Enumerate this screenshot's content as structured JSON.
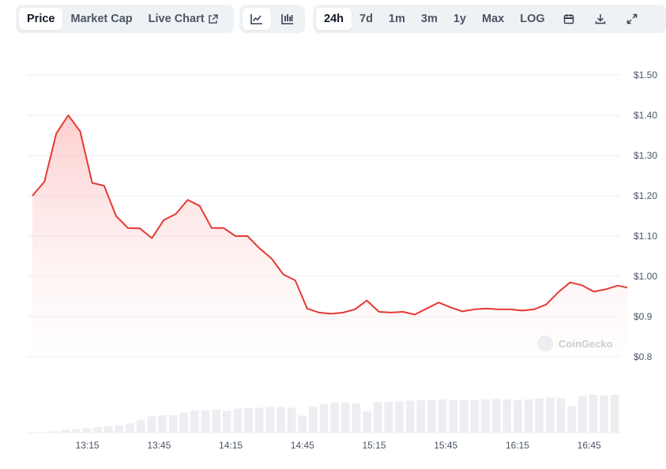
{
  "tabs": {
    "price": "Price",
    "market_cap": "Market Cap",
    "live_chart": "Live Chart"
  },
  "chart_types": [
    "line-chart-icon",
    "candlestick-chart-icon"
  ],
  "ranges": [
    "24h",
    "7d",
    "1m",
    "3m",
    "1y",
    "Max",
    "LOG"
  ],
  "active_range": "24h",
  "actions": [
    "calendar-icon",
    "download-icon",
    "expand-icon"
  ],
  "watermark": "CoinGecko",
  "colors": {
    "line": "#e53935",
    "fill": "#fdd9d7",
    "volume": "#edeef1",
    "grid": "#eceef1"
  },
  "chart_data": {
    "type": "area",
    "xlabel": "",
    "ylabel": "",
    "yticks": [
      "$1.50",
      "$1.40",
      "$1.30",
      "$1.20",
      "$1.10",
      "$1.00",
      "$0.9",
      "$0.8"
    ],
    "ytick_values": [
      1.5,
      1.4,
      1.3,
      1.2,
      1.1,
      1.0,
      0.9,
      0.8
    ],
    "ylim": [
      0.8,
      1.5
    ],
    "xticks": [
      "13:15",
      "13:45",
      "14:15",
      "14:45",
      "15:15",
      "15:45",
      "16:15",
      "16:45"
    ],
    "xtick_minutes": [
      795,
      825,
      855,
      885,
      915,
      945,
      975,
      1005
    ],
    "xlim_minutes": [
      770,
      1018
    ],
    "grid": true,
    "series": [
      {
        "values": [
          [
            772,
            1.2
          ],
          [
            777,
            1.235
          ],
          [
            782,
            1.355
          ],
          [
            787,
            1.4
          ],
          [
            792,
            1.36
          ],
          [
            797,
            1.232
          ],
          [
            802,
            1.225
          ],
          [
            807,
            1.15
          ],
          [
            812,
            1.12
          ],
          [
            817,
            1.119
          ],
          [
            822,
            1.095
          ],
          [
            827,
            1.14
          ],
          [
            832,
            1.155
          ],
          [
            837,
            1.19
          ],
          [
            842,
            1.175
          ],
          [
            847,
            1.12
          ],
          [
            852,
            1.12
          ],
          [
            857,
            1.1
          ],
          [
            862,
            1.1
          ],
          [
            867,
            1.07
          ],
          [
            872,
            1.045
          ],
          [
            877,
            1.005
          ],
          [
            882,
            0.99
          ],
          [
            887,
            0.92
          ],
          [
            892,
            0.91
          ],
          [
            897,
            0.907
          ],
          [
            902,
            0.91
          ],
          [
            907,
            0.918
          ],
          [
            912,
            0.94
          ],
          [
            917,
            0.912
          ],
          [
            922,
            0.91
          ],
          [
            927,
            0.912
          ],
          [
            932,
            0.905
          ],
          [
            937,
            0.92
          ],
          [
            942,
            0.935
          ],
          [
            947,
            0.923
          ],
          [
            952,
            0.913
          ],
          [
            957,
            0.918
          ],
          [
            962,
            0.92
          ],
          [
            967,
            0.918
          ],
          [
            972,
            0.918
          ],
          [
            977,
            0.915
          ],
          [
            982,
            0.918
          ],
          [
            987,
            0.93
          ],
          [
            992,
            0.96
          ],
          [
            997,
            0.985
          ],
          [
            1002,
            0.978
          ],
          [
            1007,
            0.962
          ],
          [
            1012,
            0.968
          ],
          [
            1017,
            0.977
          ],
          [
            1021,
            0.972
          ]
        ]
      }
    ],
    "volume_bars": [
      0.0,
      0.01,
      0.03,
      0.06,
      0.08,
      0.1,
      0.12,
      0.14,
      0.16,
      0.2,
      0.28,
      0.35,
      0.38,
      0.38,
      0.44,
      0.48,
      0.48,
      0.5,
      0.47,
      0.52,
      0.53,
      0.54,
      0.56,
      0.56,
      0.54,
      0.37,
      0.56,
      0.62,
      0.65,
      0.65,
      0.63,
      0.46,
      0.66,
      0.67,
      0.68,
      0.69,
      0.7,
      0.71,
      0.72,
      0.71,
      0.7,
      0.71,
      0.72,
      0.73,
      0.72,
      0.71,
      0.72,
      0.74,
      0.76,
      0.75,
      0.57,
      0.8,
      0.82,
      0.8,
      0.82
    ]
  }
}
